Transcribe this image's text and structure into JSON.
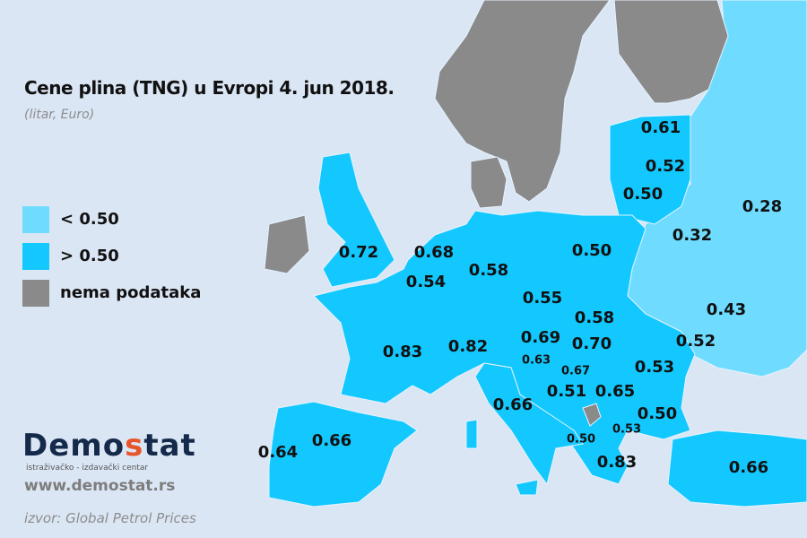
{
  "title": "Cene plina (TNG) u Evropi  4. jun 2018.",
  "subtitle": "(litar, Euro)",
  "colors": {
    "background": "#dbe6f5",
    "below_050": "#6fdcff",
    "above_050": "#12c8ff",
    "no_data": "#8a8a8a"
  },
  "legend": [
    {
      "label": "<  0.50",
      "color": "#6fdcff"
    },
    {
      "label": "> 0.50",
      "color": "#12c8ff"
    },
    {
      "label": "nema podataka",
      "color": "#8a8a8a"
    }
  ],
  "values": [
    "0.61",
    "0.52",
    "0.50",
    "0.28",
    "0.32",
    "0.50",
    "0.72",
    "0.68",
    "0.58",
    "0.54",
    "0.55",
    "0.58",
    "0.43",
    "0.69",
    "0.70",
    "0.52",
    "0.83",
    "0.82",
    "0.63",
    "0.67",
    "0.53",
    "0.51",
    "0.65",
    "0.66",
    "0.50",
    "0.50",
    "0.53",
    "0.83",
    "0.64",
    "0.66",
    "0.66"
  ],
  "logo": {
    "text": "Demostat",
    "tagline": "istraživačko - izdavački  centar"
  },
  "website": "www.demostat.rs",
  "source": "izvor: Global Petrol Prices"
}
